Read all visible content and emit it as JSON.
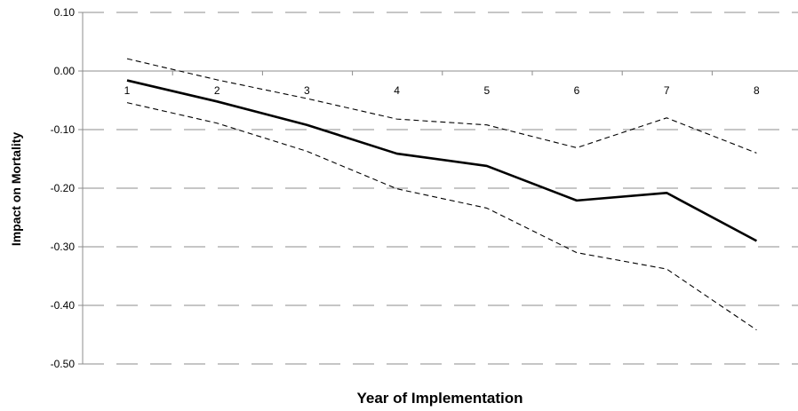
{
  "chart_data": {
    "type": "line",
    "title": "",
    "xlabel": "Year of Implementation",
    "ylabel": "Impact on Mortality",
    "categories": [
      "1",
      "2",
      "3",
      "4",
      "5",
      "6",
      "7",
      "8"
    ],
    "ylim": [
      -0.5,
      0.1
    ],
    "yticks": [
      "0.10",
      "0.00",
      "-0.10",
      "-0.20",
      "-0.30",
      "-0.40",
      "-0.50"
    ],
    "grid": true,
    "legend": "none",
    "series": [
      {
        "style": "solid",
        "color": "#000000",
        "values": [
          -0.016,
          -0.052,
          -0.092,
          -0.141,
          -0.162,
          -0.221,
          -0.208,
          -0.29
        ]
      },
      {
        "style": "dashed",
        "color": "#000000",
        "values": [
          0.021,
          -0.015,
          -0.047,
          -0.082,
          -0.092,
          -0.131,
          -0.08,
          -0.14
        ]
      },
      {
        "style": "dashed",
        "color": "#000000",
        "values": [
          -0.054,
          -0.089,
          -0.137,
          -0.201,
          -0.234,
          -0.31,
          -0.338,
          -0.442
        ]
      }
    ]
  }
}
